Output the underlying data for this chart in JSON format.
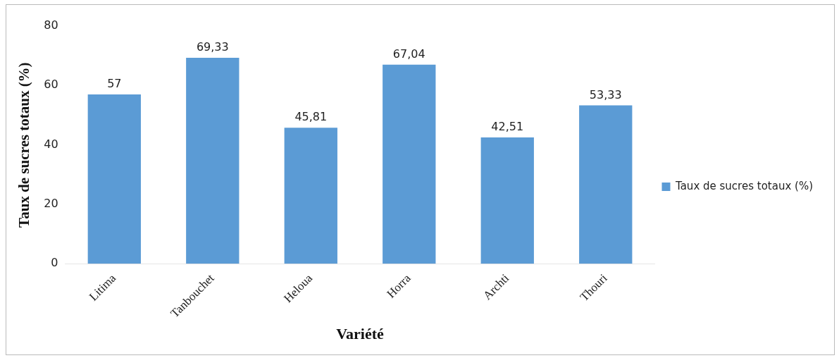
{
  "chart_data": {
    "type": "bar",
    "xlabel": "Variété",
    "ylabel": "Taux de sucres totaux (%)",
    "categories": [
      "Litima",
      "Tanbouchet",
      "Heloua",
      "Horra",
      "Archti",
      "Thouri"
    ],
    "series": [
      {
        "name": "Taux de sucres totaux (%)",
        "color": "#5b9bd5",
        "values": [
          57,
          69.33,
          45.81,
          67.04,
          42.51,
          53.33
        ],
        "value_labels": [
          "57",
          "69,33",
          "45,81",
          "67,04",
          "42,51",
          "53,33"
        ]
      }
    ],
    "ylim": [
      0,
      80
    ],
    "yticks": [
      0,
      20,
      40,
      60,
      80
    ],
    "grid": false,
    "legend": "right"
  }
}
